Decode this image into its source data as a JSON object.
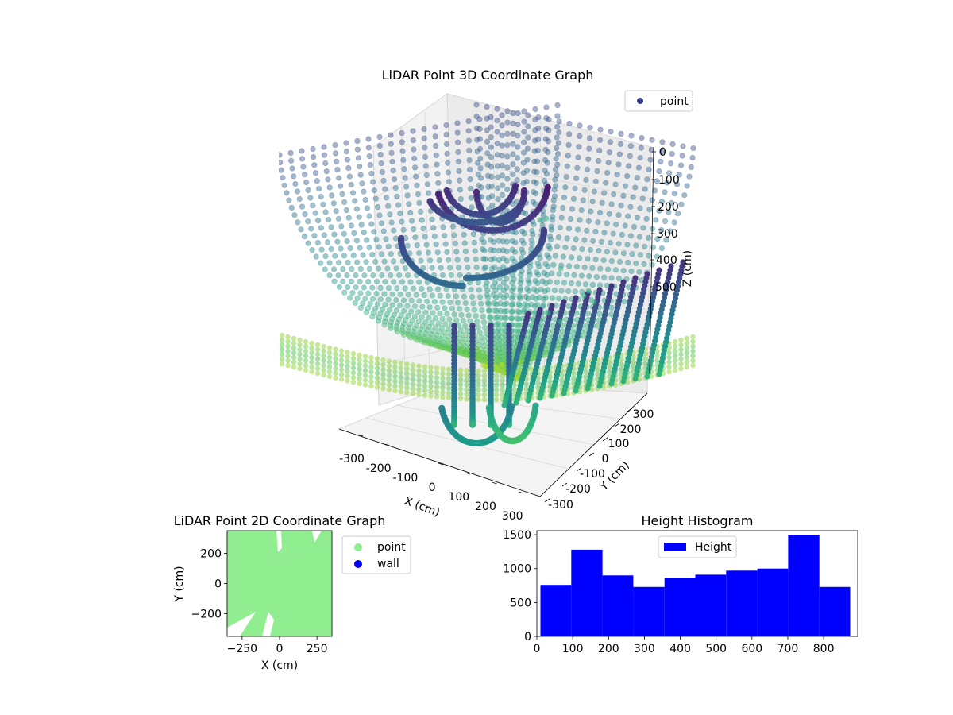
{
  "chart_data": [
    {
      "type": "scatter",
      "projection": "3d",
      "title": "LiDAR Point 3D Coordinate Graph",
      "xlabel": "X (cm)",
      "ylabel": "Y (cm)",
      "zlabel": "Z (cm)",
      "x_ticks": [
        "-300",
        "-200",
        "-100",
        "0",
        "100",
        "200",
        "300"
      ],
      "y_ticks": [
        "-300",
        "-200",
        "-100",
        "0",
        "100",
        "200",
        "300"
      ],
      "z_ticks": [
        "0",
        "100",
        "200",
        "300",
        "400",
        "500"
      ],
      "colormap": "viridis",
      "legend": {
        "placement": "top-right",
        "entries": [
          {
            "label": "point",
            "color": "#3b3e8a"
          }
        ]
      },
      "grid": true
    },
    {
      "type": "scatter",
      "title": "LiDAR Point 2D Coordinate Graph",
      "xlabel": "X (cm)",
      "ylabel": "Y (cm)",
      "x_ticks": [
        -250,
        0,
        250
      ],
      "y_ticks": [
        -200,
        0,
        200
      ],
      "xlim": [
        -350,
        350
      ],
      "ylim": [
        -350,
        350
      ],
      "series": [
        {
          "name": "point",
          "color": "#90ee90"
        },
        {
          "name": "wall",
          "color": "#0000ff"
        }
      ],
      "legend": {
        "placement": "outside-right"
      }
    },
    {
      "type": "bar",
      "title": "Height Histogram",
      "bin_edges": [
        10,
        96,
        183,
        269,
        356,
        442,
        528,
        615,
        701,
        788,
        874
      ],
      "values": [
        760,
        1280,
        900,
        730,
        860,
        910,
        970,
        1000,
        1490,
        730
      ],
      "xlim": [
        0,
        895
      ],
      "ylim": [
        0,
        1560
      ],
      "x_ticks": [
        0,
        100,
        200,
        300,
        400,
        500,
        600,
        700,
        800
      ],
      "y_ticks": [
        0,
        500,
        1000,
        1500
      ],
      "color": "#0000ff",
      "legend": {
        "placement": "top-center",
        "entries": [
          {
            "label": "Height",
            "color": "#0000ff"
          }
        ]
      }
    }
  ]
}
